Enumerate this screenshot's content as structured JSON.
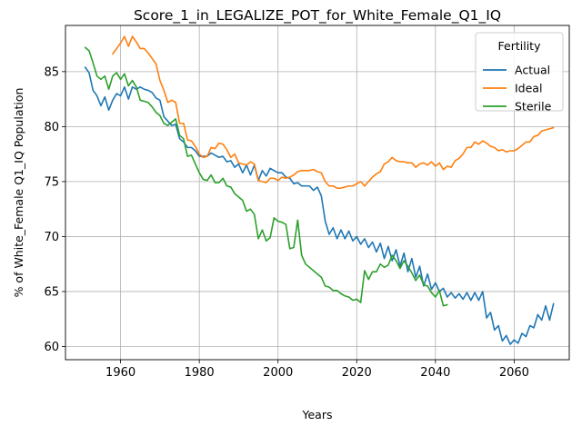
{
  "chart_data": {
    "type": "line",
    "title": "Score_1_in_LEGALIZE_POT_for_White_Female_Q1_IQ",
    "xlabel": "Years",
    "ylabel": "% of White_Female Q1_IQ Population",
    "xlim": [
      1946,
      2074
    ],
    "ylim": [
      58.8,
      89.2
    ],
    "xticks": [
      1960,
      1980,
      2000,
      2020,
      2040,
      2060
    ],
    "yticks": [
      60,
      65,
      70,
      75,
      80,
      85
    ],
    "grid": true,
    "legend": {
      "title": "Fertility",
      "placement": "top-right"
    },
    "series": [
      {
        "name": "Actual",
        "color": "#1f77b4",
        "x": [
          1951,
          1952,
          1953,
          1954,
          1955,
          1956,
          1957,
          1958,
          1959,
          1960,
          1961,
          1962,
          1963,
          1964,
          1965,
          1966,
          1967,
          1968,
          1969,
          1970,
          1971,
          1972,
          1973,
          1974,
          1975,
          1976,
          1977,
          1978,
          1979,
          1980,
          1981,
          1982,
          1983,
          1984,
          1985,
          1986,
          1987,
          1988,
          1989,
          1990,
          1991,
          1992,
          1993,
          1994,
          1995,
          1996,
          1997,
          1998,
          1999,
          2000,
          2001,
          2002,
          2003,
          2004,
          2005,
          2006,
          2007,
          2008,
          2009,
          2010,
          2011,
          2012,
          2013,
          2014,
          2015,
          2016,
          2017,
          2018,
          2019,
          2020,
          2021,
          2022,
          2023,
          2024,
          2025,
          2026,
          2027,
          2028,
          2029,
          2030,
          2031,
          2032,
          2033,
          2034,
          2035,
          2036,
          2037,
          2038,
          2039,
          2040,
          2041,
          2042,
          2043,
          2044,
          2045,
          2046,
          2047,
          2048,
          2049,
          2050,
          2051,
          2052,
          2053,
          2054,
          2055,
          2056,
          2057,
          2058,
          2059,
          2060,
          2061,
          2062,
          2063,
          2064,
          2065,
          2066,
          2067,
          2068,
          2069,
          2070
        ],
        "values": [
          85.4,
          84.9,
          83.3,
          82.8,
          81.9,
          82.7,
          81.5,
          82.4,
          83.0,
          82.8,
          83.6,
          82.5,
          83.6,
          83.4,
          83.6,
          83.4,
          83.3,
          83.1,
          82.6,
          82.4,
          80.9,
          80.5,
          80.1,
          80.2,
          78.9,
          78.6,
          78.1,
          78.1,
          77.8,
          77.3,
          77.3,
          77.3,
          77.6,
          77.4,
          77.2,
          77.3,
          76.8,
          76.9,
          76.3,
          76.6,
          75.8,
          76.5,
          75.6,
          76.5,
          75.1,
          76.0,
          75.5,
          76.2,
          76.0,
          75.8,
          75.8,
          75.4,
          75.3,
          74.8,
          74.9,
          74.6,
          74.6,
          74.6,
          74.2,
          74.5,
          73.7,
          71.4,
          70.2,
          70.8,
          69.8,
          70.6,
          69.8,
          70.5,
          69.6,
          70.0,
          69.3,
          69.8,
          69.0,
          69.5,
          68.6,
          69.4,
          68.0,
          69.1,
          67.8,
          68.8,
          67.3,
          68.5,
          66.8,
          68.0,
          66.3,
          67.3,
          65.5,
          66.6,
          65.2,
          65.8,
          65.0,
          65.3,
          64.5,
          64.9,
          64.4,
          64.8,
          64.3,
          64.9,
          64.2,
          64.9,
          64.2,
          65.0,
          62.6,
          63.1,
          61.5,
          61.9,
          60.5,
          61.0,
          60.2,
          60.6,
          60.3,
          61.2,
          60.9,
          61.9,
          61.7,
          62.9,
          62.4,
          63.7,
          62.4,
          63.9
        ]
      },
      {
        "name": "Ideal",
        "color": "#ff7f0e",
        "x": [
          1958,
          1959,
          1960,
          1961,
          1962,
          1963,
          1964,
          1965,
          1966,
          1967,
          1968,
          1969,
          1970,
          1971,
          1972,
          1973,
          1974,
          1975,
          1976,
          1977,
          1978,
          1979,
          1980,
          1981,
          1982,
          1983,
          1984,
          1985,
          1986,
          1987,
          1988,
          1989,
          1990,
          1991,
          1992,
          1993,
          1994,
          1995,
          1996,
          1997,
          1998,
          1999,
          2000,
          2001,
          2002,
          2003,
          2004,
          2005,
          2006,
          2007,
          2008,
          2009,
          2010,
          2011,
          2012,
          2013,
          2014,
          2015,
          2016,
          2017,
          2018,
          2019,
          2020,
          2021,
          2022,
          2023,
          2024,
          2025,
          2026,
          2027,
          2028,
          2029,
          2030,
          2031,
          2032,
          2033,
          2034,
          2035,
          2036,
          2037,
          2038,
          2039,
          2040,
          2041,
          2042,
          2043,
          2044,
          2045,
          2046,
          2047,
          2048,
          2049,
          2050,
          2051,
          2052,
          2053,
          2054,
          2055,
          2056,
          2057,
          2058,
          2059,
          2060,
          2061,
          2062,
          2063,
          2064,
          2065,
          2066,
          2067,
          2068,
          2069,
          2070
        ],
        "values": [
          86.6,
          87.1,
          87.6,
          88.2,
          87.3,
          88.2,
          87.7,
          87.1,
          87.1,
          86.7,
          86.2,
          85.7,
          84.2,
          83.3,
          82.2,
          82.4,
          82.2,
          80.3,
          80.3,
          78.8,
          78.7,
          78.2,
          77.5,
          77.2,
          77.3,
          78.1,
          78.0,
          78.5,
          78.4,
          77.9,
          77.2,
          77.5,
          76.7,
          76.6,
          76.5,
          76.8,
          76.6,
          75.1,
          75.0,
          74.9,
          75.3,
          75.3,
          75.1,
          75.4,
          75.3,
          75.4,
          75.6,
          75.9,
          76.0,
          76.0,
          76.0,
          76.1,
          75.9,
          75.8,
          75.0,
          74.6,
          74.6,
          74.4,
          74.4,
          74.5,
          74.6,
          74.6,
          74.8,
          75.0,
          74.6,
          75.0,
          75.4,
          75.7,
          75.9,
          76.6,
          76.8,
          77.2,
          76.9,
          76.8,
          76.8,
          76.7,
          76.7,
          76.3,
          76.6,
          76.7,
          76.5,
          76.8,
          76.4,
          76.7,
          76.1,
          76.4,
          76.3,
          76.9,
          77.1,
          77.5,
          78.1,
          78.1,
          78.6,
          78.4,
          78.7,
          78.5,
          78.2,
          78.1,
          77.8,
          77.9,
          77.7,
          77.8,
          77.8,
          78.0,
          78.3,
          78.6,
          78.6,
          79.1,
          79.2,
          79.6,
          79.7,
          79.8,
          79.9
        ]
      },
      {
        "name": "Sterile",
        "color": "#2ca02c",
        "x": [
          1951,
          1952,
          1953,
          1954,
          1955,
          1956,
          1957,
          1958,
          1959,
          1960,
          1961,
          1962,
          1963,
          1964,
          1965,
          1966,
          1967,
          1968,
          1969,
          1970,
          1971,
          1972,
          1973,
          1974,
          1975,
          1976,
          1977,
          1978,
          1979,
          1980,
          1981,
          1982,
          1983,
          1984,
          1985,
          1986,
          1987,
          1988,
          1989,
          1990,
          1991,
          1992,
          1993,
          1994,
          1995,
          1996,
          1997,
          1998,
          1999,
          2000,
          2001,
          2002,
          2003,
          2004,
          2005,
          2006,
          2007,
          2008,
          2009,
          2010,
          2011,
          2012,
          2013,
          2014,
          2015,
          2016,
          2017,
          2018,
          2019,
          2020,
          2021,
          2022,
          2023,
          2024,
          2025,
          2026,
          2027,
          2028,
          2029,
          2030,
          2031,
          2032,
          2033,
          2034,
          2035,
          2036,
          2037,
          2038,
          2039,
          2040,
          2041,
          2042,
          2043
        ],
        "values": [
          87.2,
          86.9,
          85.8,
          84.6,
          84.3,
          84.6,
          83.4,
          84.6,
          84.9,
          84.3,
          84.8,
          83.7,
          84.2,
          83.6,
          82.4,
          82.3,
          82.2,
          81.8,
          81.3,
          81.0,
          80.3,
          80.1,
          80.4,
          80.7,
          79.2,
          78.9,
          77.3,
          77.4,
          76.6,
          75.8,
          75.2,
          75.1,
          75.6,
          74.9,
          74.9,
          75.3,
          74.6,
          74.5,
          73.9,
          73.6,
          73.3,
          72.3,
          72.5,
          72.0,
          69.8,
          70.6,
          69.6,
          69.9,
          71.7,
          71.4,
          71.3,
          71.1,
          68.9,
          69.0,
          71.5,
          68.3,
          67.5,
          67.2,
          66.9,
          66.6,
          66.3,
          65.5,
          65.4,
          65.1,
          65.1,
          64.8,
          64.6,
          64.5,
          64.2,
          64.3,
          64.0,
          66.9,
          66.1,
          66.8,
          66.8,
          67.5,
          67.2,
          67.4,
          68.3,
          67.8,
          67.1,
          67.8,
          67.3,
          66.7,
          66.0,
          66.5,
          65.6,
          65.5,
          64.9,
          64.5,
          65.1,
          63.7,
          63.8
        ]
      }
    ]
  }
}
